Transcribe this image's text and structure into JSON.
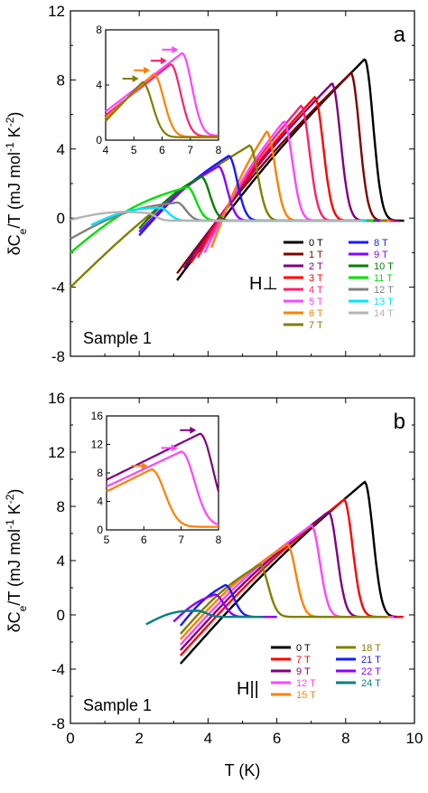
{
  "figure": {
    "xlabel": "T (K)",
    "ylabel_html": "δC<sub>e</sub>/T (mJ mol<sup>-1</sup> K<sup>-2</sup>)"
  },
  "chart_data": [
    {
      "type": "line",
      "panel_label": "a",
      "sample_label": "Sample 1",
      "field_label": "H⊥",
      "xlabel": "",
      "ylabel": "δCe/T (mJ mol-1 K-2)",
      "xlim": [
        0,
        10
      ],
      "ylim": [
        -8,
        12
      ],
      "xticks": [
        0,
        2,
        4,
        6,
        8,
        10
      ],
      "xtick_labels_shown": false,
      "yticks": [
        -8,
        -4,
        0,
        4,
        8,
        12
      ],
      "series": [
        {
          "name": "0 T",
          "color": "#000000",
          "tstart": 3.1,
          "peak_t": 8.55,
          "peak_v": 9.2,
          "end_t": 9.7,
          "start_v": -3.6
        },
        {
          "name": "1 T",
          "color": "#800000",
          "tstart": 3.1,
          "peak_t": 8.15,
          "peak_v": 8.4,
          "end_t": 9.6,
          "start_v": -3.2
        },
        {
          "name": "2 T",
          "color": "#800080",
          "tstart": 3.3,
          "peak_t": 7.6,
          "peak_v": 7.8,
          "end_t": 9.5,
          "start_v": -2.9
        },
        {
          "name": "3 T",
          "color": "#ff0000",
          "tstart": 3.5,
          "peak_t": 7.1,
          "peak_v": 7.0,
          "end_t": 9.4,
          "start_v": -2.6
        },
        {
          "name": "4 T",
          "color": "#ff1f6e",
          "tstart": 3.7,
          "peak_t": 6.7,
          "peak_v": 6.5,
          "end_t": 9.4,
          "start_v": -2.3
        },
        {
          "name": "5 T",
          "color": "#ff44ff",
          "tstart": 3.9,
          "peak_t": 6.2,
          "peak_v": 5.6,
          "end_t": 9.3,
          "start_v": -2.0
        },
        {
          "name": "6 T",
          "color": "#ff8000",
          "tstart": 4.1,
          "peak_t": 5.7,
          "peak_v": 5.0,
          "end_t": 9.3,
          "start_v": -1.7
        },
        {
          "name": "7 T",
          "color": "#808000",
          "tstart": 0.0,
          "peak_t": 5.2,
          "peak_v": 4.2,
          "end_t": 9.2,
          "start_v": -4.0
        },
        {
          "name": "8 T",
          "color": "#1a1aff",
          "tstart": 2.0,
          "peak_t": 4.6,
          "peak_v": 3.6,
          "end_t": 9.0,
          "start_v": -1.0
        },
        {
          "name": "9 T",
          "color": "#8b00ff",
          "tstart": 2.0,
          "peak_t": 4.3,
          "peak_v": 3.0,
          "end_t": 9.0,
          "start_v": -0.8
        },
        {
          "name": "10 T",
          "color": "#008000",
          "tstart": 2.0,
          "peak_t": 3.8,
          "peak_v": 2.4,
          "end_t": 8.9,
          "start_v": -0.6
        },
        {
          "name": "11 T",
          "color": "#00e000",
          "tstart": 0.0,
          "peak_t": 3.4,
          "peak_v": 1.8,
          "end_t": 8.8,
          "start_v": -2.0
        },
        {
          "name": "12 T",
          "color": "#808080",
          "tstart": 0.0,
          "peak_t": 3.1,
          "peak_v": 0.9,
          "end_t": 8.7,
          "start_v": -1.2
        },
        {
          "name": "13 T",
          "color": "#00e5ff",
          "tstart": 0.6,
          "peak_t": 2.6,
          "peak_v": 0.6,
          "end_t": 8.6,
          "start_v": -0.4
        },
        {
          "name": "14 T",
          "color": "#b4b4b4",
          "tstart": 0.0,
          "peak_t": 2.2,
          "peak_v": 0.3,
          "end_t": 8.5,
          "start_v": -0.1
        }
      ],
      "inset": {
        "xlim": [
          4,
          8
        ],
        "ylim": [
          0,
          8
        ],
        "xticks": [
          4,
          5,
          6,
          7,
          8
        ],
        "yticks": [
          0,
          4,
          8
        ],
        "series": [
          {
            "name": "4 T",
            "color": "#ff44ff",
            "peak_t": 6.7,
            "peak_v": 6.3
          },
          {
            "name": "5 T",
            "color": "#ff1f6e",
            "peak_t": 6.3,
            "peak_v": 5.5
          },
          {
            "name": "6 T",
            "color": "#ff8000",
            "peak_t": 5.7,
            "peak_v": 4.8
          },
          {
            "name": "7 T",
            "color": "#808000",
            "peak_t": 5.3,
            "peak_v": 4.2
          }
        ]
      }
    },
    {
      "type": "line",
      "panel_label": "b",
      "sample_label": "Sample 1",
      "field_label": "H||",
      "xlabel": "T (K)",
      "ylabel": "δCe/T (mJ mol-1 K-2)",
      "xlim": [
        0,
        10
      ],
      "ylim": [
        -8,
        16
      ],
      "xticks": [
        0,
        2,
        4,
        6,
        8,
        10
      ],
      "xtick_labels_shown": true,
      "yticks": [
        -8,
        -4,
        0,
        4,
        8,
        12,
        16
      ],
      "series": [
        {
          "name": "0 T",
          "color": "#000000",
          "tstart": 3.2,
          "peak_t": 8.55,
          "peak_v": 9.8,
          "end_t": 9.6,
          "start_v": -3.6
        },
        {
          "name": "7 T",
          "color": "#ff0000",
          "tstart": 3.2,
          "peak_t": 7.95,
          "peak_v": 8.5,
          "end_t": 9.7,
          "start_v": -3.0
        },
        {
          "name": "9 T",
          "color": "#800080",
          "tstart": 3.2,
          "peak_t": 7.5,
          "peak_v": 7.6,
          "end_t": 9.5,
          "start_v": -2.6
        },
        {
          "name": "12 T",
          "color": "#ff44ff",
          "tstart": 3.2,
          "peak_t": 7.0,
          "peak_v": 6.6,
          "end_t": 9.4,
          "start_v": -2.2
        },
        {
          "name": "15 T",
          "color": "#ff8000",
          "tstart": 3.2,
          "peak_t": 6.3,
          "peak_v": 5.2,
          "end_t": 9.3,
          "start_v": -1.8
        },
        {
          "name": "18 T",
          "color": "#808000",
          "tstart": 3.2,
          "peak_t": 5.5,
          "peak_v": 3.7,
          "end_t": 9.2,
          "start_v": -1.4
        },
        {
          "name": "21 T",
          "color": "#1a1aff",
          "tstart": 3.2,
          "peak_t": 4.5,
          "peak_v": 2.2,
          "end_t": 6.0,
          "start_v": -0.8
        },
        {
          "name": "22 T",
          "color": "#8b00ff",
          "tstart": 3.0,
          "peak_t": 4.2,
          "peak_v": 1.5,
          "end_t": 6.0,
          "start_v": -0.5
        },
        {
          "name": "24 T",
          "color": "#008080",
          "tstart": 2.2,
          "peak_t": 3.7,
          "peak_v": 0.3,
          "end_t": 5.6,
          "start_v": -0.7
        }
      ],
      "inset": {
        "xlim": [
          5,
          8
        ],
        "ylim": [
          0,
          16
        ],
        "xticks": [
          5,
          6,
          7,
          8
        ],
        "yticks": [
          0,
          4,
          8,
          12,
          16
        ],
        "series": [
          {
            "name": "0 T",
            "color": "#800080",
            "peak_t": 7.5,
            "peak_v": 13.5
          },
          {
            "name": "9 T",
            "color": "#ff44ff",
            "peak_t": 7.0,
            "peak_v": 11.0
          },
          {
            "name": "15 T",
            "color": "#ff8000",
            "peak_t": 6.2,
            "peak_v": 8.5
          }
        ]
      }
    }
  ]
}
